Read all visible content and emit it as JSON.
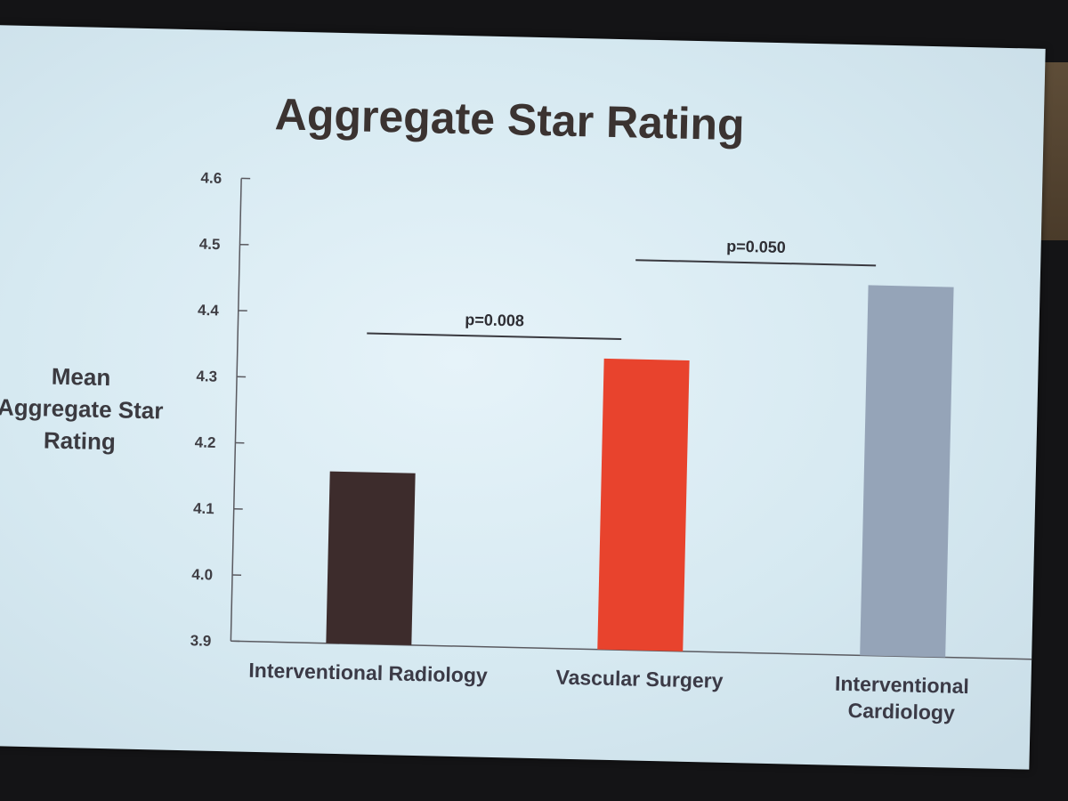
{
  "chart_data": {
    "type": "bar",
    "title": "Aggregate Star Rating",
    "ylabel": [
      "Mean",
      "Aggregate Star",
      "Rating"
    ],
    "xlabel": "",
    "categories": [
      [
        "Interventional Radiology"
      ],
      [
        "Vascular Surgery"
      ],
      [
        "Interventional",
        "Cardiology"
      ]
    ],
    "values": [
      4.16,
      4.34,
      4.46
    ],
    "ylim": [
      3.9,
      4.6
    ],
    "yticks": [
      "3.9",
      "4.0",
      "4.1",
      "4.2",
      "4.3",
      "4.4",
      "4.5",
      "4.6"
    ],
    "grid": false,
    "colors": [
      "#3d2c2c",
      "#e8432d",
      "#95a4b8"
    ],
    "annotations": [
      {
        "text": "p=0.008",
        "from": 0,
        "to": 1,
        "level": 4.37
      },
      {
        "text": "p=0.050",
        "from": 1,
        "to": 2,
        "level": 4.49
      }
    ]
  }
}
